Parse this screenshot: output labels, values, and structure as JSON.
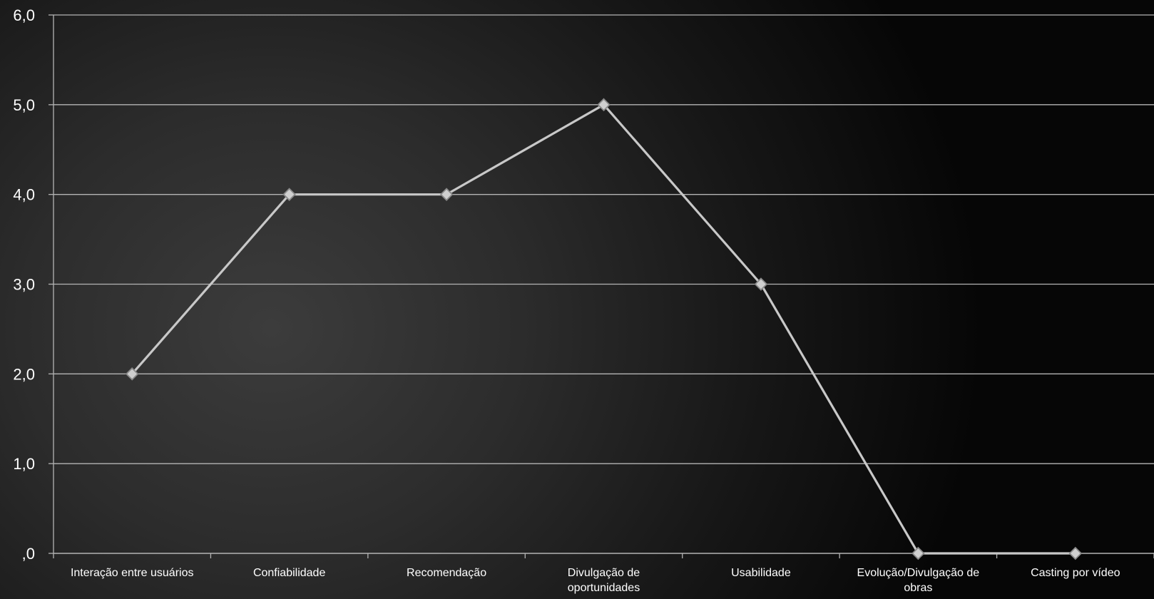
{
  "chart_data": {
    "type": "line",
    "categories": [
      "Interação entre usuários",
      "Confiabilidade",
      "Recomendação",
      "Divulgação de oportunidades",
      "Usabilidade",
      "Evolução/Divulgação de obras",
      "Casting por vídeo"
    ],
    "category_lines": [
      [
        "Interação entre usuários"
      ],
      [
        "Confiabilidade"
      ],
      [
        "Recomendação"
      ],
      [
        "Divulgação de",
        "oportunidades"
      ],
      [
        "Usabilidade"
      ],
      [
        "Evolução/Divulgação de",
        "obras"
      ],
      [
        "Casting por vídeo"
      ]
    ],
    "values": [
      2.0,
      4.0,
      4.0,
      5.0,
      3.0,
      0.0,
      0.0
    ],
    "y_ticks": [
      ",0",
      "1,0",
      "2,0",
      "3,0",
      "4,0",
      "5,0",
      "6,0"
    ],
    "ylim": [
      0,
      6
    ],
    "grid": true,
    "legend": "none",
    "title": "",
    "xlabel": "",
    "ylabel": "",
    "colors": {
      "line": "#c8c8c8",
      "marker_fill": "#cfcfcf",
      "marker_stroke": "#8a8a8a",
      "grid": "#b4b4b4",
      "text": "#ffffff"
    }
  }
}
